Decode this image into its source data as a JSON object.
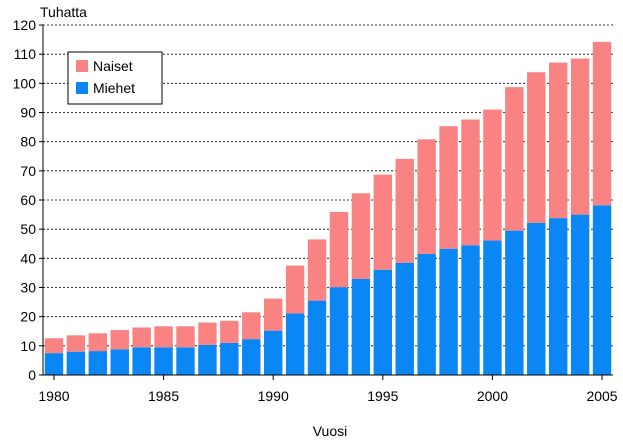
{
  "chart_data": {
    "type": "bar",
    "stacked": true,
    "ylabel": "Tuhatta",
    "xlabel": "Vuosi",
    "ylim": [
      0,
      120
    ],
    "yticks": [
      0,
      10,
      20,
      30,
      40,
      50,
      60,
      70,
      80,
      90,
      100,
      110,
      120
    ],
    "grid": true,
    "legend_position": "top-left",
    "xtick_labels": [
      "1980",
      "1985",
      "1990",
      "1995",
      "2000",
      "2005"
    ],
    "categories": [
      1980,
      1981,
      1982,
      1983,
      1984,
      1985,
      1986,
      1987,
      1988,
      1989,
      1990,
      1991,
      1992,
      1993,
      1994,
      1995,
      1996,
      1997,
      1998,
      1999,
      2000,
      2001,
      2002,
      2003,
      2004,
      2005
    ],
    "series": [
      {
        "name": "Miehet",
        "color": "#0a86f5",
        "values": [
          7.5,
          8,
          8.2,
          8.8,
          9.5,
          9.5,
          9.5,
          10.3,
          11,
          12.3,
          15.2,
          21.1,
          25.5,
          30.1,
          33,
          36.1,
          38.5,
          41.5,
          43.3,
          44.5,
          46.1,
          49.5,
          52.2,
          53.8,
          55,
          58.2
        ]
      },
      {
        "name": "Naiset",
        "color": "#f98383",
        "values": [
          5.1,
          5.6,
          6.1,
          6.6,
          6.8,
          7.2,
          7.2,
          7.7,
          7.6,
          9.2,
          11,
          16.4,
          21,
          25.8,
          29.3,
          32.6,
          35.6,
          39.3,
          42,
          43.1,
          44.9,
          49.2,
          51.6,
          53.3,
          53.5,
          56
        ]
      }
    ],
    "legend_order": [
      "Naiset",
      "Miehet"
    ]
  }
}
